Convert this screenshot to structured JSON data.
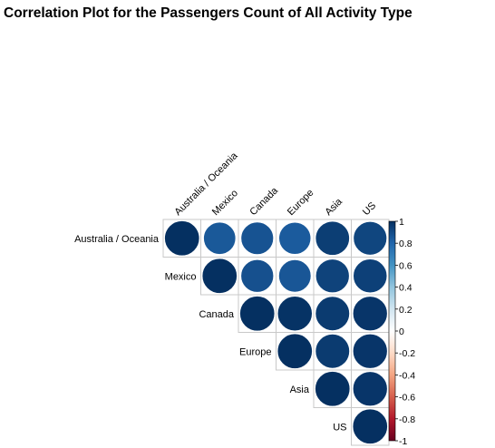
{
  "chart_data": {
    "type": "heatmap",
    "subtype": "correlation-plot-upper-circles",
    "title": "Correlation Plot for the Passengers Count of All Activity Type",
    "variables": [
      "Australia / Oceania",
      "Mexico",
      "Canada",
      "Europe",
      "Asia",
      "US"
    ],
    "matrix": [
      [
        1.0,
        0.85,
        0.87,
        0.84,
        0.95,
        0.92
      ],
      [
        null,
        1.0,
        0.88,
        0.86,
        0.93,
        0.94
      ],
      [
        null,
        null,
        1.0,
        0.99,
        0.96,
        0.98
      ],
      [
        null,
        null,
        null,
        1.0,
        0.96,
        0.98
      ],
      [
        null,
        null,
        null,
        null,
        1.0,
        0.98
      ],
      [
        null,
        null,
        null,
        null,
        null,
        1.0
      ]
    ],
    "color_scale": {
      "range": [
        -1,
        1
      ],
      "tick_labels": [
        "1",
        "0.8",
        "0.6",
        "0.4",
        "0.2",
        "0",
        "-0.2",
        "-0.4",
        "-0.6",
        "-0.8",
        "-1"
      ],
      "negative_color": "#67001F",
      "neutral_color": "#FFFFFF",
      "positive_color": "#053061"
    },
    "legend_position": "right",
    "grid": true
  }
}
